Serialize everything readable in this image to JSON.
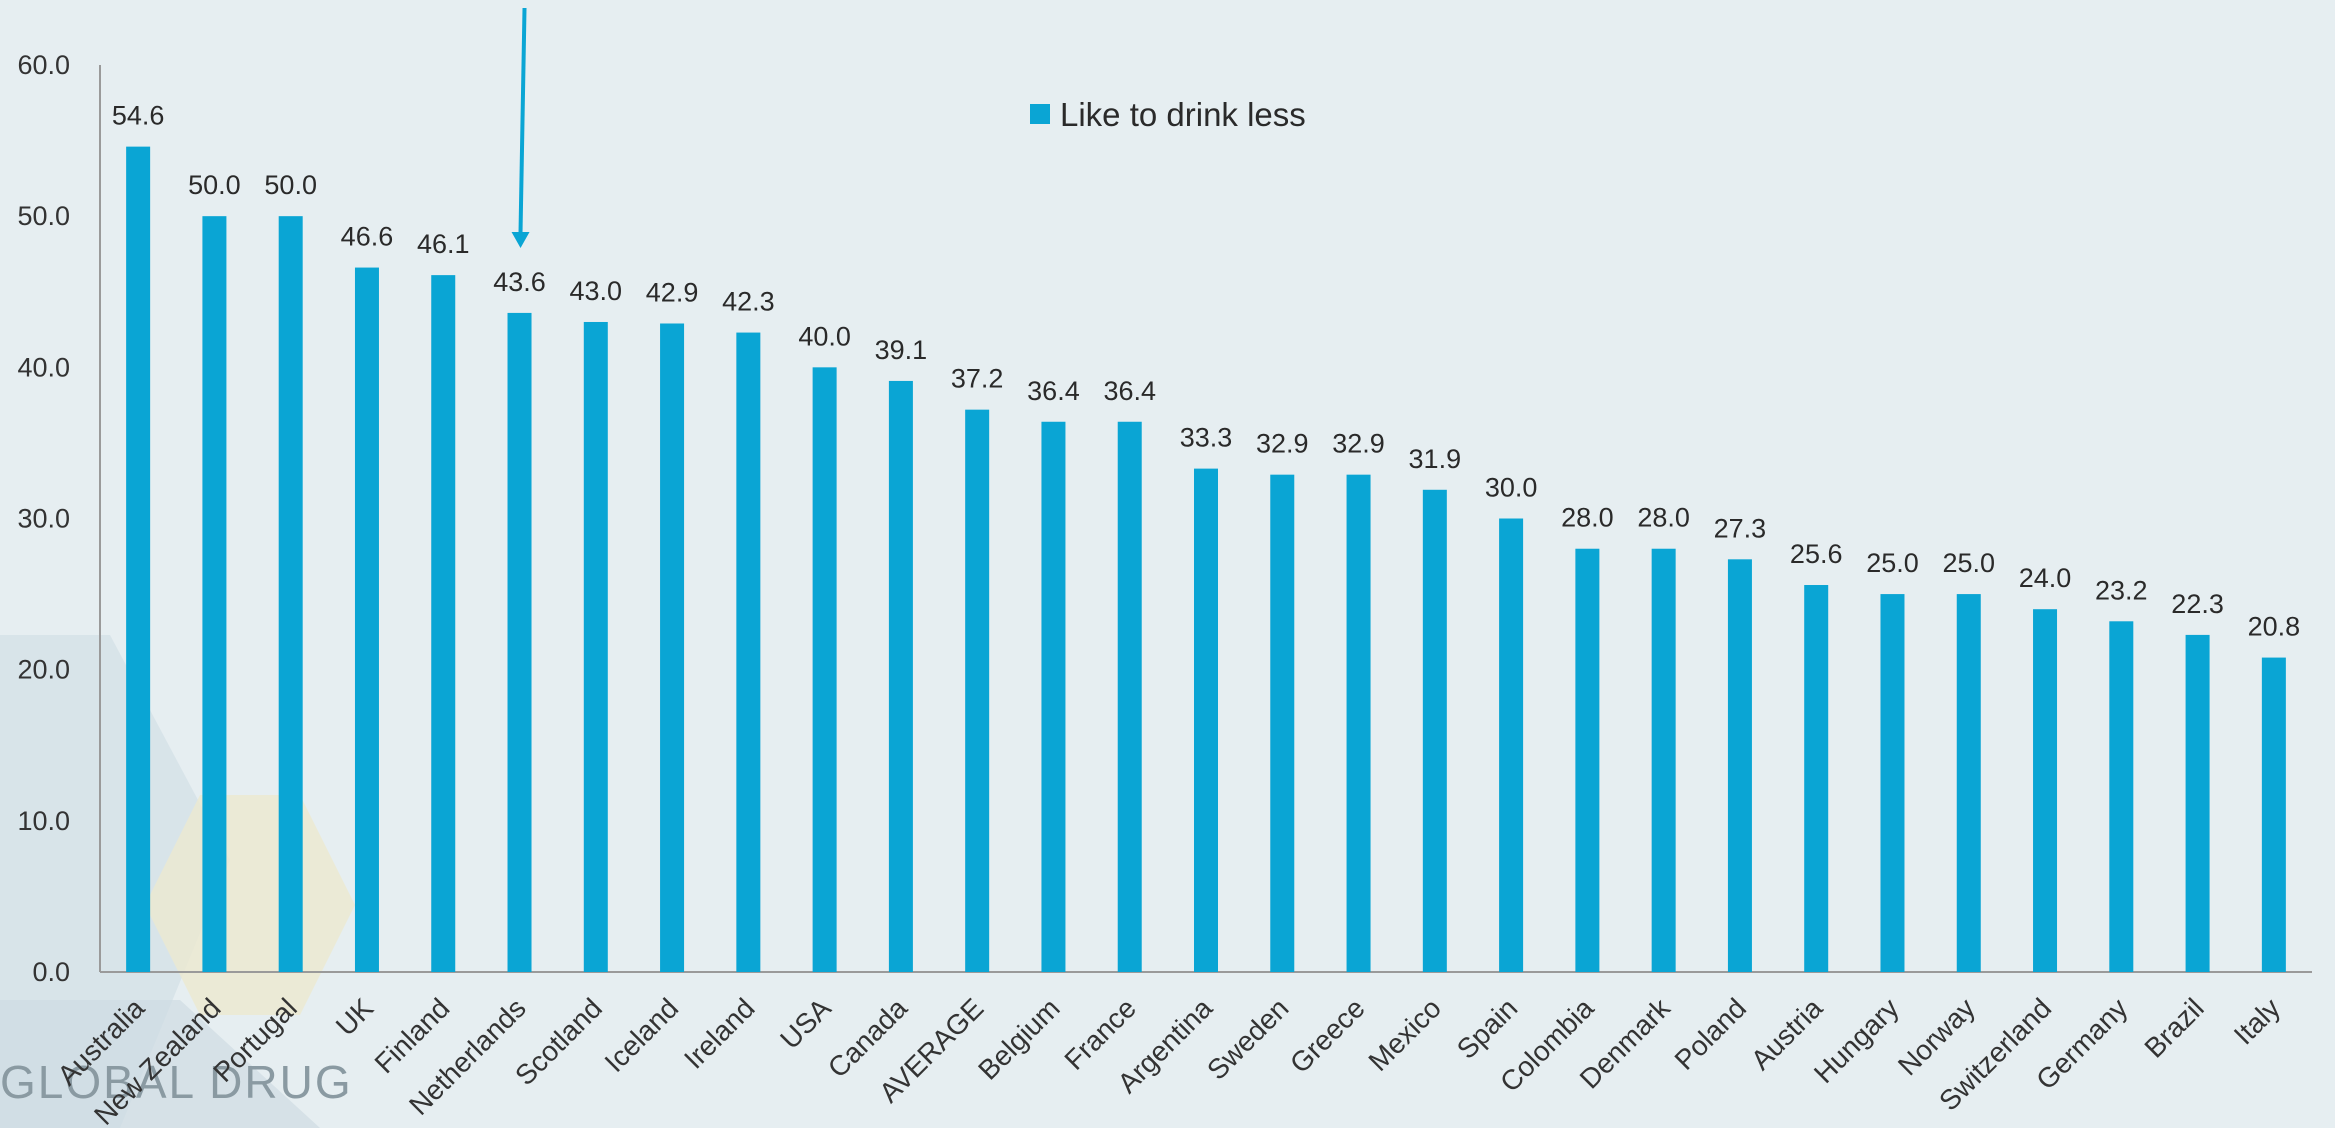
{
  "chart_data": {
    "type": "bar",
    "categories": [
      "Australia",
      "New Zealand",
      "Portugal",
      "UK",
      "Finland",
      "Netherlands",
      "Scotland",
      "Iceland",
      "Ireland",
      "USA",
      "Canada",
      "AVERAGE",
      "Belgium",
      "France",
      "Argentina",
      "Sweden",
      "Greece",
      "Mexico",
      "Spain",
      "Colombia",
      "Denmark",
      "Poland",
      "Austria",
      "Hungary",
      "Norway",
      "Switzerland",
      "Germany",
      "Brazil",
      "Italy"
    ],
    "series": [
      {
        "name": "Like to drink less",
        "values": [
          54.6,
          50.0,
          50.0,
          46.6,
          46.1,
          43.6,
          43.0,
          42.9,
          42.3,
          40.0,
          39.1,
          37.2,
          36.4,
          36.4,
          33.3,
          32.9,
          32.9,
          31.9,
          30.0,
          28.0,
          28.0,
          27.3,
          25.6,
          25.0,
          25.0,
          24.0,
          23.2,
          22.3,
          20.8
        ],
        "color": "#0aa5d4"
      }
    ],
    "ylim": [
      0,
      60
    ],
    "yticks": [
      0,
      10,
      20,
      30,
      40,
      50,
      60
    ],
    "ytick_format_decimals": 1,
    "grid": false,
    "legend_position": "top-center",
    "highlight_arrow_category": "Netherlands",
    "arrow_color": "#0aa5d4"
  },
  "logo": {
    "text": "GLOBAL DRUG"
  }
}
